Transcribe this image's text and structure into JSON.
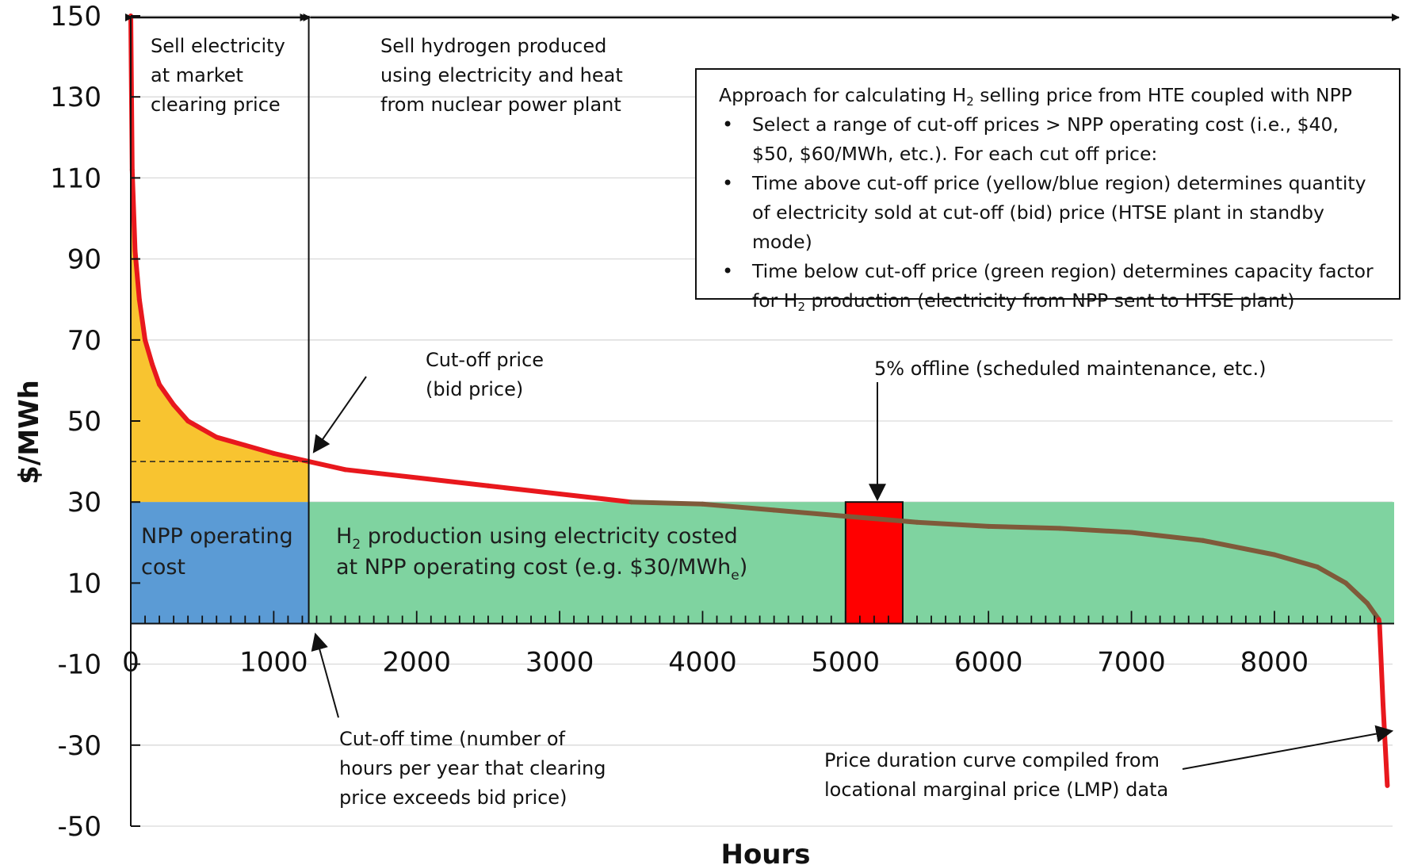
{
  "chart_data": {
    "type": "area",
    "title": "",
    "xlabel": "Hours",
    "ylabel": "$/MWh",
    "xlim": [
      0,
      8760
    ],
    "ylim": [
      -50,
      150
    ],
    "x_ticks": [
      0,
      1000,
      2000,
      3000,
      4000,
      5000,
      6000,
      7000,
      8000
    ],
    "y_ticks": [
      150,
      130,
      110,
      90,
      70,
      50,
      30,
      10,
      -10,
      -30,
      -50
    ],
    "grid": true,
    "series": [
      {
        "name": "Price duration curve compiled from locational marginal price (LMP) data",
        "x": [
          0,
          10,
          30,
          60,
          100,
          150,
          200,
          300,
          400,
          600,
          800,
          1000,
          1245,
          1500,
          2000,
          2500,
          3000,
          3500,
          4000,
          4500,
          5000,
          5500,
          6000,
          6500,
          7000,
          7500,
          8000,
          8300,
          8500,
          8650,
          8730,
          8735,
          8760,
          8790
        ],
        "y": [
          150,
          112,
          92,
          80,
          70,
          64,
          59,
          54,
          50,
          46,
          44,
          42,
          40,
          38,
          36,
          34,
          32,
          30,
          29.5,
          28,
          26.5,
          25,
          24,
          23.5,
          22.5,
          20.5,
          17,
          14,
          10,
          5,
          1,
          0,
          -20,
          -40
        ],
        "color": "#e8181d"
      }
    ],
    "cutoff_price": 40,
    "cutoff_hours": 1245,
    "npp_operating_cost": 30,
    "offline_block": {
      "x": [
        5000,
        5400
      ],
      "y": [
        0,
        30
      ],
      "color": "#ff0000"
    },
    "region_colors": {
      "sell_electricity": "#f8c430",
      "npp_operating_cost": "#5b9bd5",
      "h2_production": "#7fd3a0",
      "curve": "#e8181d",
      "curve_over_green": "#7f5a3a"
    }
  },
  "annotations": {
    "sell_electricity": [
      "Sell electricity",
      "at market",
      "clearing price"
    ],
    "sell_hydrogen": [
      "Sell hydrogen produced",
      "using electricity and heat",
      "from nuclear power plant"
    ],
    "cutoff_price": [
      "Cut-off price",
      "(bid price)"
    ],
    "offline": "5% offline (scheduled maintenance, etc.)",
    "cutoff_time": [
      "Cut-off time (number of",
      "hours per year that clearing",
      "price exceeds bid price)"
    ],
    "price_duration": [
      "Price duration curve compiled from",
      "locational marginal price (LMP) data"
    ],
    "npp_operating_cost": [
      "NPP operating",
      "cost"
    ],
    "h2_production_line1_pre": "H",
    "h2_production_line1_sub": "2",
    "h2_production_line1_post": " production using electricity costed",
    "h2_production_line2_pre": "at NPP operating cost (e.g. $30/MWh",
    "h2_production_line2_sub": "e",
    "h2_production_line2_post": ")"
  },
  "approach_box": {
    "title_pre": "Approach for calculating H",
    "title_sub": "2",
    "title_post": " selling price from HTE coupled with NPP",
    "bullet1": "Select a range of cut-off prices > NPP operating cost (i.e., $40, $50, $60/MWh, etc.). For each cut off price:",
    "bullet2": "Time above cut-off price (yellow/blue region) determines quantity of electricity sold at cut-off (bid) price (HTSE plant in standby mode)",
    "bullet3_pre": "Time below cut-off price (green region) determines capacity factor for H",
    "bullet3_sub": "2",
    "bullet3_post": " production (electricity from NPP sent to HTSE plant)"
  }
}
